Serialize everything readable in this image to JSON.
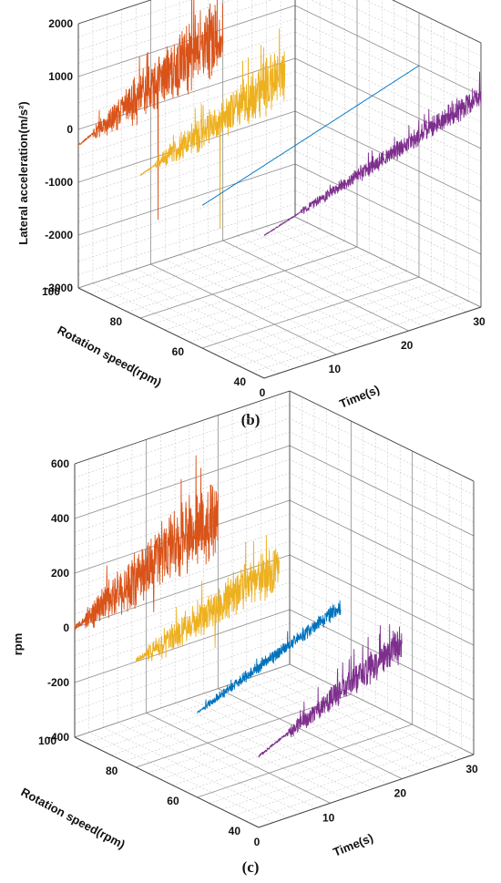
{
  "chart_data": [
    {
      "type": "line",
      "panel_label": "(b)",
      "zlabel": "Lateral acceleration(m/s²)",
      "ylabel": "Rotation speed(rpm)",
      "xlabel": "Time(s)",
      "xlim": [
        0,
        30
      ],
      "ylim": [
        40,
        100
      ],
      "zlim": [
        -3000,
        2000
      ],
      "x_ticks": [
        "0",
        "10",
        "20",
        "30"
      ],
      "y_ticks": [
        "40",
        "60",
        "80",
        "100"
      ],
      "z_ticks": [
        "-3000",
        "-2000",
        "-1000",
        "0",
        "1000",
        "2000"
      ],
      "grid": true,
      "series": [
        {
          "rpm": 100,
          "color": "#D95319",
          "t_end": 20,
          "quiet_until": 2,
          "base_start": -300,
          "base_end": 1000,
          "amp_start": 80,
          "amp_end": 900,
          "spike_min": -2200
        },
        {
          "rpm": 80,
          "color": "#EDB120",
          "t_end": 20,
          "quiet_until": 2,
          "base_start": -300,
          "base_end": 700,
          "amp_start": 60,
          "amp_end": 650,
          "spike_min": -1800
        },
        {
          "rpm": 60,
          "color": "#0072BD",
          "t_end": 30,
          "quiet_until": 30,
          "base_start": -300,
          "base_end": 1000,
          "amp_start": 10,
          "amp_end": 30
        },
        {
          "rpm": 40,
          "color": "#7E2F8E",
          "t_end": 30,
          "quiet_until": 5,
          "base_start": -300,
          "base_end": 1000,
          "amp_start": 50,
          "amp_end": 280
        }
      ]
    },
    {
      "type": "line",
      "panel_label": "(c)",
      "zlabel": "rpm",
      "ylabel": "Rotation speed(rpm)",
      "xlabel": "Time(s)",
      "xlim": [
        0,
        30
      ],
      "ylim": [
        40,
        100
      ],
      "zlim": [
        -400,
        600
      ],
      "x_ticks": [
        "0",
        "10",
        "20",
        "30"
      ],
      "y_ticks": [
        "40",
        "60",
        "80",
        "100"
      ],
      "z_ticks": [
        "-400",
        "-200",
        "0",
        "200",
        "400",
        "600"
      ],
      "grid": true,
      "series": [
        {
          "rpm": 100,
          "color": "#D95319",
          "t_end": 20,
          "quiet_until": 1.5,
          "base_start": 0,
          "base_end": 250,
          "amp_start": 40,
          "amp_end": 170,
          "spike_min": -40
        },
        {
          "rpm": 80,
          "color": "#EDB120",
          "t_end": 20,
          "quiet_until": 1.5,
          "base_start": -10,
          "base_end": 160,
          "amp_start": 40,
          "amp_end": 110,
          "spike_min": -60
        },
        {
          "rpm": 60,
          "color": "#0072BD",
          "t_end": 20,
          "quiet_until": 1,
          "base_start": -90,
          "base_end": 120,
          "amp_start": 15,
          "amp_end": 35
        },
        {
          "rpm": 40,
          "color": "#7E2F8E",
          "t_end": 20,
          "quiet_until": 4,
          "base_start": -140,
          "base_end": 100,
          "amp_start": 20,
          "amp_end": 80
        }
      ]
    }
  ]
}
